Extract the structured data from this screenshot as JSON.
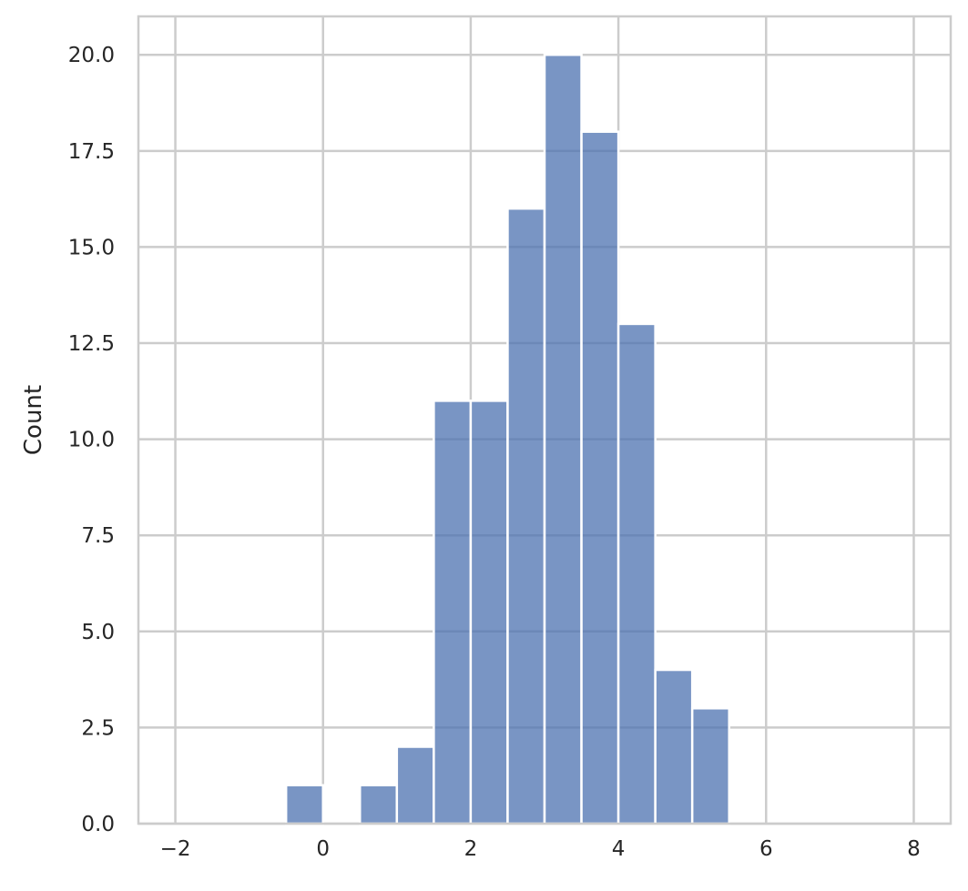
{
  "chart_data": {
    "type": "bar",
    "title": "",
    "xlabel": "",
    "ylabel": "Count",
    "xlim": [
      -2.5,
      8.5
    ],
    "ylim": [
      0,
      21
    ],
    "x_ticks": [
      -2,
      0,
      2,
      4,
      6,
      8
    ],
    "x_tick_labels": [
      "−2",
      "0",
      "2",
      "4",
      "6",
      "8"
    ],
    "y_ticks": [
      0,
      2.5,
      5,
      7.5,
      10,
      12.5,
      15,
      17.5,
      20
    ],
    "y_tick_labels": [
      "0.0",
      "2.5",
      "5.0",
      "7.5",
      "10.0",
      "12.5",
      "15.0",
      "17.5",
      "20.0"
    ],
    "grid": true,
    "bar_color": "#4c72b0",
    "bins": [
      {
        "x0": -0.5,
        "x1": 0.0,
        "count": 1
      },
      {
        "x0": 0.0,
        "x1": 0.5,
        "count": 0
      },
      {
        "x0": 0.5,
        "x1": 1.0,
        "count": 1
      },
      {
        "x0": 1.0,
        "x1": 1.5,
        "count": 2
      },
      {
        "x0": 1.5,
        "x1": 2.0,
        "count": 11
      },
      {
        "x0": 2.0,
        "x1": 2.5,
        "count": 11
      },
      {
        "x0": 2.5,
        "x1": 3.0,
        "count": 16
      },
      {
        "x0": 3.0,
        "x1": 3.5,
        "count": 20
      },
      {
        "x0": 3.5,
        "x1": 4.0,
        "count": 18
      },
      {
        "x0": 4.0,
        "x1": 4.5,
        "count": 13
      },
      {
        "x0": 4.5,
        "x1": 5.0,
        "count": 4
      },
      {
        "x0": 5.0,
        "x1": 5.5,
        "count": 3
      }
    ]
  }
}
